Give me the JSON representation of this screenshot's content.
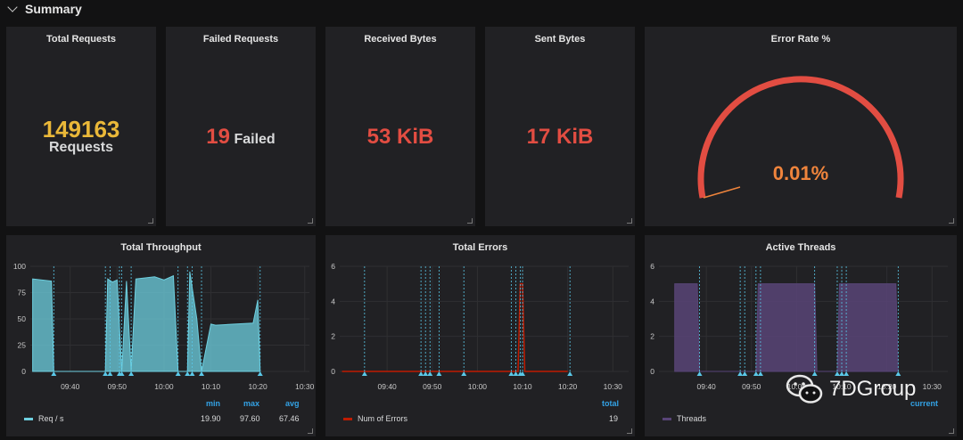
{
  "row": {
    "title": "Summary"
  },
  "stats": {
    "total_requests": {
      "title": "Total Requests",
      "value": "149163",
      "unit": "Requests",
      "color": "#eab839"
    },
    "failed_requests": {
      "title": "Failed Requests",
      "value": "19",
      "unit": "Failed",
      "color": "#e24d42"
    },
    "received_bytes": {
      "title": "Received Bytes",
      "value": "53 KiB",
      "color": "#e24d42"
    },
    "sent_bytes": {
      "title": "Sent Bytes",
      "value": "17 KiB",
      "color": "#e24d42"
    }
  },
  "gauge": {
    "title": "Error Rate %",
    "value": "0.01%",
    "value_color": "#ef843c",
    "arc_color": "#e24d42",
    "fraction": 0.0001
  },
  "colors": {
    "throughput": "#6ed0e0",
    "errors": "#bf1b00",
    "threads": "#584477",
    "annotation": "#5ac8e8",
    "legend_head": "#33a2e5"
  },
  "watermark": {
    "text": "7DGroup",
    "icon": "wechat-icon"
  },
  "chart_data": [
    {
      "type": "area",
      "title": "Total Throughput",
      "ylim": [
        0,
        100
      ],
      "yticks": [
        0,
        25,
        50,
        75,
        100
      ],
      "xticks": [
        "09:40",
        "09:50",
        "10:00",
        "10:10",
        "10:20",
        "10:30"
      ],
      "series": [
        {
          "name": "Req / s",
          "x": [
            "09:32",
            "09:36",
            "09:36.5",
            "09:47.5",
            "09:48",
            "09:49",
            "09:50",
            "09:51",
            "09:52",
            "09:53",
            "09:54",
            "09:56",
            "09:58",
            "10:00",
            "10:02",
            "10:03",
            "10:05",
            "10:05.5",
            "10:07",
            "10:08",
            "10:10",
            "10:11",
            "10:15",
            "10:19",
            "10:20",
            "10:20.5"
          ],
          "values": [
            88,
            86,
            0,
            0,
            88,
            85,
            87,
            0,
            86,
            0,
            88,
            89,
            90,
            87,
            91,
            0,
            0,
            95,
            50,
            0,
            45,
            44,
            45,
            46,
            68,
            0
          ]
        }
      ],
      "legend": {
        "headers": [
          "min",
          "max",
          "avg"
        ],
        "rows": [
          {
            "name": "Req / s",
            "values": [
              "19.90",
              "97.60",
              "67.46"
            ]
          }
        ]
      }
    },
    {
      "type": "line",
      "title": "Total Errors",
      "ylim": [
        0,
        6
      ],
      "yticks": [
        0,
        2,
        4,
        6
      ],
      "xticks": [
        "09:40",
        "09:50",
        "10:00",
        "10:10",
        "10:20",
        "10:30"
      ],
      "series": [
        {
          "name": "Num of Errors",
          "x": [
            "09:30",
            "10:09",
            "10:09.5",
            "10:10",
            "10:10.5",
            "10:20"
          ],
          "values": [
            0,
            0,
            5,
            5,
            0,
            0
          ]
        }
      ],
      "legend": {
        "headers": [
          "total"
        ],
        "rows": [
          {
            "name": "Num of Errors",
            "values": [
              "19"
            ]
          }
        ]
      }
    },
    {
      "type": "area",
      "title": "Active Threads",
      "ylim": [
        0,
        6
      ],
      "yticks": [
        0,
        2,
        4,
        6
      ],
      "xticks": [
        "09:40",
        "09:50",
        "10:00",
        "10:10",
        "10:20",
        "10:30"
      ],
      "series": [
        {
          "name": "Threads",
          "x": [
            "09:33",
            "09:38",
            "09:38.5",
            "09:51",
            "09:51.5",
            "10:04",
            "10:04.5",
            "10:09",
            "10:09.5",
            "10:22",
            "10:22.5"
          ],
          "values": [
            5,
            5,
            0,
            0,
            5,
            5,
            0,
            0,
            5,
            5,
            0
          ]
        }
      ],
      "legend": {
        "headers": [
          "current"
        ],
        "rows": [
          {
            "name": "Threads",
            "values": [
              ""
            ]
          }
        ]
      }
    }
  ]
}
